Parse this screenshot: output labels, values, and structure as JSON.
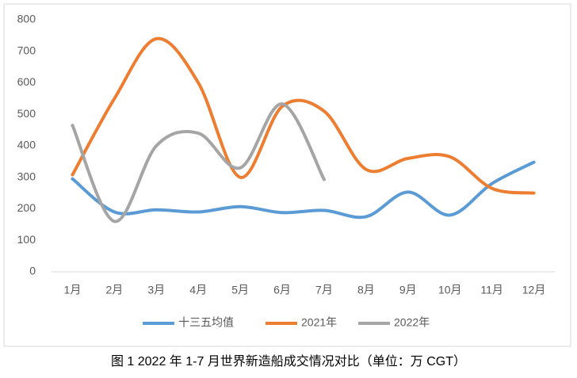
{
  "chart_data": {
    "type": "line",
    "title": "图 1 2022 年 1-7 月世界新造船成交情况对比（单位：万 CGT）",
    "categories": [
      "1月",
      "2月",
      "3月",
      "4月",
      "5月",
      "6月",
      "7月",
      "8月",
      "9月",
      "10月",
      "11月",
      "12月"
    ],
    "series": [
      {
        "name": "十三五均值",
        "color": "#5b9bd5",
        "values": [
          295,
          190,
          197,
          190,
          207,
          188,
          195,
          175,
          253,
          180,
          280,
          348
        ]
      },
      {
        "name": "2021年",
        "color": "#ed7d31",
        "values": [
          308,
          550,
          740,
          600,
          300,
          525,
          510,
          325,
          360,
          365,
          265,
          250
        ]
      },
      {
        "name": "2022年",
        "color": "#a5a5a5",
        "values": [
          465,
          160,
          400,
          440,
          330,
          533,
          293,
          null,
          null,
          null,
          null,
          null
        ]
      }
    ],
    "ylim": [
      0,
      800
    ],
    "yticks": [
      0,
      100,
      200,
      300,
      400,
      500,
      600,
      700,
      800
    ],
    "grid": false,
    "legend": "bottom",
    "smooth": true
  }
}
